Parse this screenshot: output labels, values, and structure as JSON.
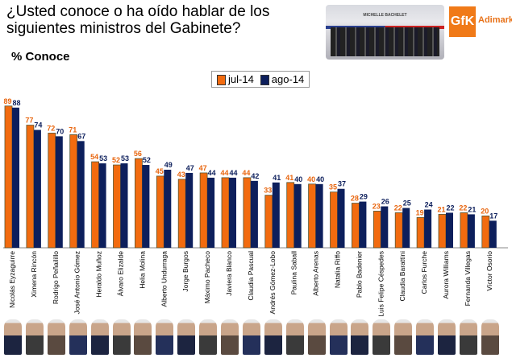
{
  "header": {
    "title": "¿Usted conoce o ha oído hablar de los siguientes ministros del Gabinete?",
    "subtitle": "% Conoce",
    "photo_caption": "MICHELLE BACHELET",
    "logo": "GfK",
    "brand": "Adimark"
  },
  "chart_data": {
    "type": "bar",
    "title": "¿Usted conoce o ha oído hablar de los siguientes ministros del Gabinete?",
    "ylabel": "% Conoce",
    "ylim": [
      0,
      100
    ],
    "legend_position": "top-center",
    "categories": [
      "Nicolás Eyzaguirre",
      "Ximena Rincón",
      "Rodrigo Peñailillo",
      "José Antonio Gómez",
      "Heraldo Muñoz",
      "Álvaro Elizalde",
      "Helia Molina",
      "Alberto Undurraga",
      "Jorge Burgos",
      "Máximo Pacheco",
      "Javiera Blanco",
      "Claudia Pascual",
      "Andrés Gómez-Lobo",
      "Paulina Saball",
      "Alberto Arenas",
      "Natalia Riffo",
      "Pablo Badenier",
      "Luis Felipe Céspedes",
      "Claudia Barattini",
      "Carlos Furche",
      "Aurora Williams",
      "Fernanda Villegas",
      "Víctor Osorio"
    ],
    "series": [
      {
        "name": "jul-14",
        "color": "#f26b0f",
        "values": [
          89,
          77,
          72,
          71,
          54,
          52,
          56,
          45,
          43,
          47,
          44,
          44,
          33,
          41,
          40,
          35,
          28,
          23,
          22,
          19,
          21,
          22,
          20
        ]
      },
      {
        "name": "ago-14",
        "color": "#0d1f5c",
        "values": [
          88,
          74,
          70,
          67,
          53,
          53,
          52,
          49,
          47,
          44,
          44,
          42,
          41,
          40,
          40,
          37,
          29,
          26,
          25,
          24,
          22,
          21,
          17
        ]
      }
    ]
  }
}
